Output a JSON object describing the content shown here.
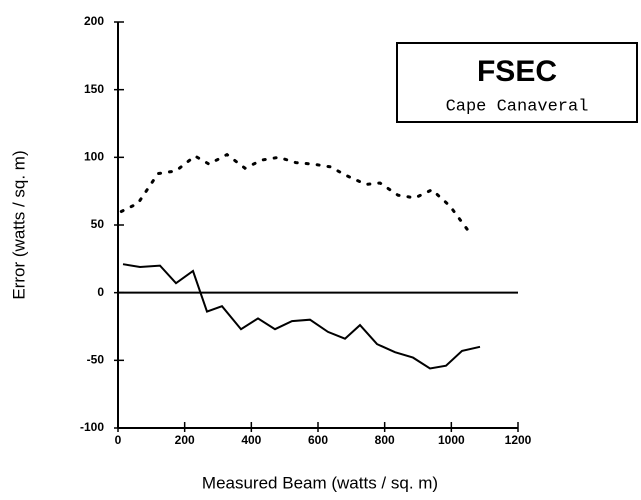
{
  "chart_data": {
    "type": "line",
    "annotation": {
      "title": "FSEC",
      "subtitle": "Cape Canaveral"
    },
    "xlabel": "Measured Beam (watts / sq. m)",
    "ylabel": "Error (watts / sq. m)",
    "xlim": [
      0,
      1200
    ],
    "xticks": [
      0,
      200,
      400,
      600,
      800,
      1000,
      1200
    ],
    "ylim": [
      -100,
      200
    ],
    "yticks": [
      -100,
      -50,
      0,
      50,
      100,
      150,
      200
    ],
    "series": [
      {
        "color": "#000000",
        "style": "dotted",
        "x": [
          10,
          60,
          120,
          174,
          231,
          273,
          327,
          381,
          432,
          483,
          534,
          585,
          636,
          690,
          744,
          786,
          840,
          891,
          942,
          996,
          1056
        ],
        "values": [
          60,
          66,
          88,
          90,
          101,
          95,
          102,
          92,
          98,
          100,
          96,
          95,
          93,
          86,
          80,
          81,
          72,
          70,
          76,
          64,
          44
        ]
      },
      {
        "color": "#000000",
        "style": "solid",
        "x": [
          15,
          66,
          126,
          174,
          225,
          267,
          312,
          369,
          420,
          471,
          522,
          576,
          630,
          681,
          726,
          777,
          831,
          885,
          936,
          984,
          1032,
          1086
        ],
        "values": [
          21,
          19,
          20,
          7,
          16,
          -14,
          -10,
          -27,
          -19,
          -27,
          -21,
          -20,
          -29,
          -34,
          -24,
          -38,
          -44,
          -48,
          -56,
          -54,
          -43,
          -40
        ]
      }
    ]
  }
}
